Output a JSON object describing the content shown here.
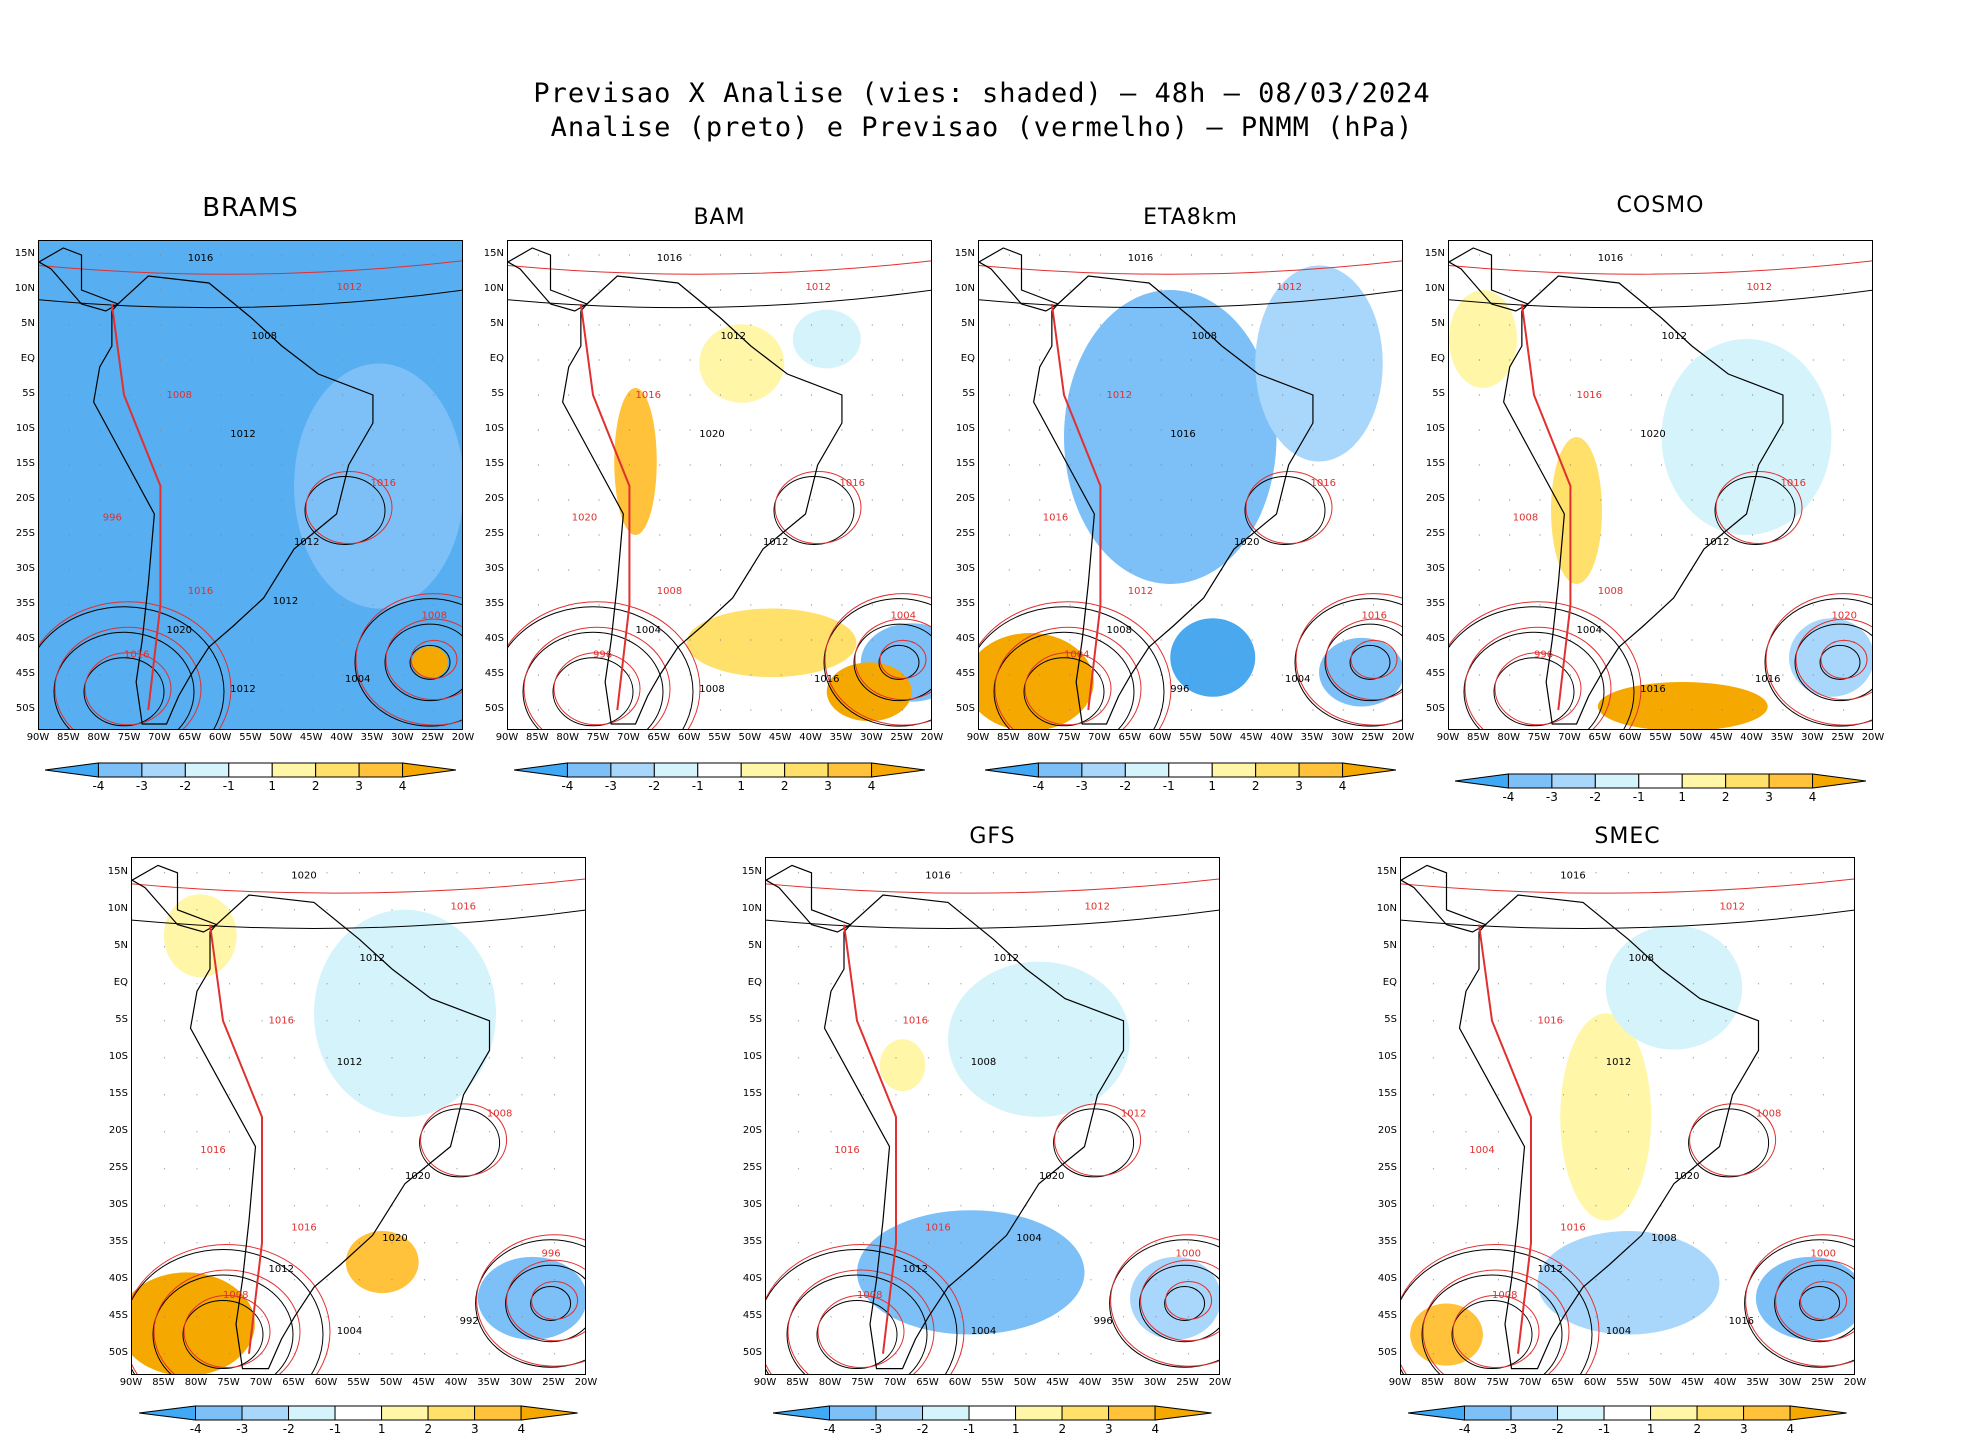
{
  "title": {
    "line1": "Previsao X Analise (vies: shaded) – 48h – 08/03/2024",
    "line2": "Analise (preto) e Previsao (vermelho) – PNMM (hPa)"
  },
  "axes": {
    "lat_labels": [
      "15N",
      "10N",
      "5N",
      "EQ",
      "5S",
      "10S",
      "15S",
      "20S",
      "25S",
      "30S",
      "35S",
      "40S",
      "45S",
      "50S"
    ],
    "lon_labels": [
      "90W",
      "85W",
      "80W",
      "75W",
      "70W",
      "65W",
      "60W",
      "55W",
      "50W",
      "45W",
      "40W",
      "35W",
      "30W",
      "25W",
      "20W"
    ]
  },
  "colorbar": {
    "labels": [
      "-4",
      "-3",
      "-2",
      "-1",
      "1",
      "2",
      "3",
      "4"
    ],
    "colors": [
      "#3fa9f5",
      "#7cc0f7",
      "#a9d6fb",
      "#d4f3fb",
      "#ffffff",
      "#fff6a8",
      "#ffe06a",
      "#ffc23a",
      "#f5a800"
    ]
  },
  "colors": {
    "analysis_contour": "#000000",
    "forecast_contour": "#e03030",
    "negative_bias": "#4aa8ee",
    "positive_bias": "#f7b000"
  },
  "panels": [
    {
      "id": "brams",
      "name": "BRAMS",
      "bias": "strong-negative",
      "labels": [
        "1016",
        "1012",
        "1008",
        "1008",
        "1012",
        "1016",
        "1012",
        "1016",
        "1020",
        "1016",
        "1012",
        "1008",
        "1004",
        "996",
        "1012"
      ]
    },
    {
      "id": "bam",
      "name": "BAM",
      "bias": "mixed",
      "labels": [
        "1016",
        "1012",
        "1012",
        "1016",
        "1020",
        "1016",
        "1012",
        "1008",
        "1004",
        "996",
        "1008",
        "1004",
        "1016",
        "1020"
      ]
    },
    {
      "id": "eta8km",
      "name": "ETA8km",
      "bias": "negative",
      "labels": [
        "1016",
        "1012",
        "1008",
        "1012",
        "1016",
        "1016",
        "1020",
        "1012",
        "1008",
        "1004",
        "996",
        "1016",
        "1004",
        "1016"
      ]
    },
    {
      "id": "cosmo",
      "name": "COSMO",
      "bias": "mixed",
      "labels": [
        "1016",
        "1012",
        "1012",
        "1016",
        "1020",
        "1016",
        "1012",
        "1008",
        "1004",
        "996",
        "1016",
        "1020",
        "1016",
        "1008"
      ]
    },
    {
      "id": "ukmo",
      "name": "",
      "bias": "mixed",
      "labels": [
        "1020",
        "1016",
        "1012",
        "1016",
        "1012",
        "1008",
        "1020",
        "1016",
        "1012",
        "1008",
        "1004",
        "996",
        "992",
        "1016",
        "1020"
      ]
    },
    {
      "id": "gfs",
      "name": "GFS",
      "bias": "mixed",
      "labels": [
        "1016",
        "1012",
        "1012",
        "1016",
        "1008",
        "1012",
        "1020",
        "1016",
        "1012",
        "1008",
        "1004",
        "1000",
        "996",
        "1016",
        "1004"
      ]
    },
    {
      "id": "smec",
      "name": "SMEC",
      "bias": "mixed",
      "labels": [
        "1016",
        "1012",
        "1008",
        "1016",
        "1012",
        "1008",
        "1020",
        "1016",
        "1012",
        "1008",
        "1004",
        "1000",
        "1016",
        "1004",
        "1008"
      ]
    }
  ]
}
